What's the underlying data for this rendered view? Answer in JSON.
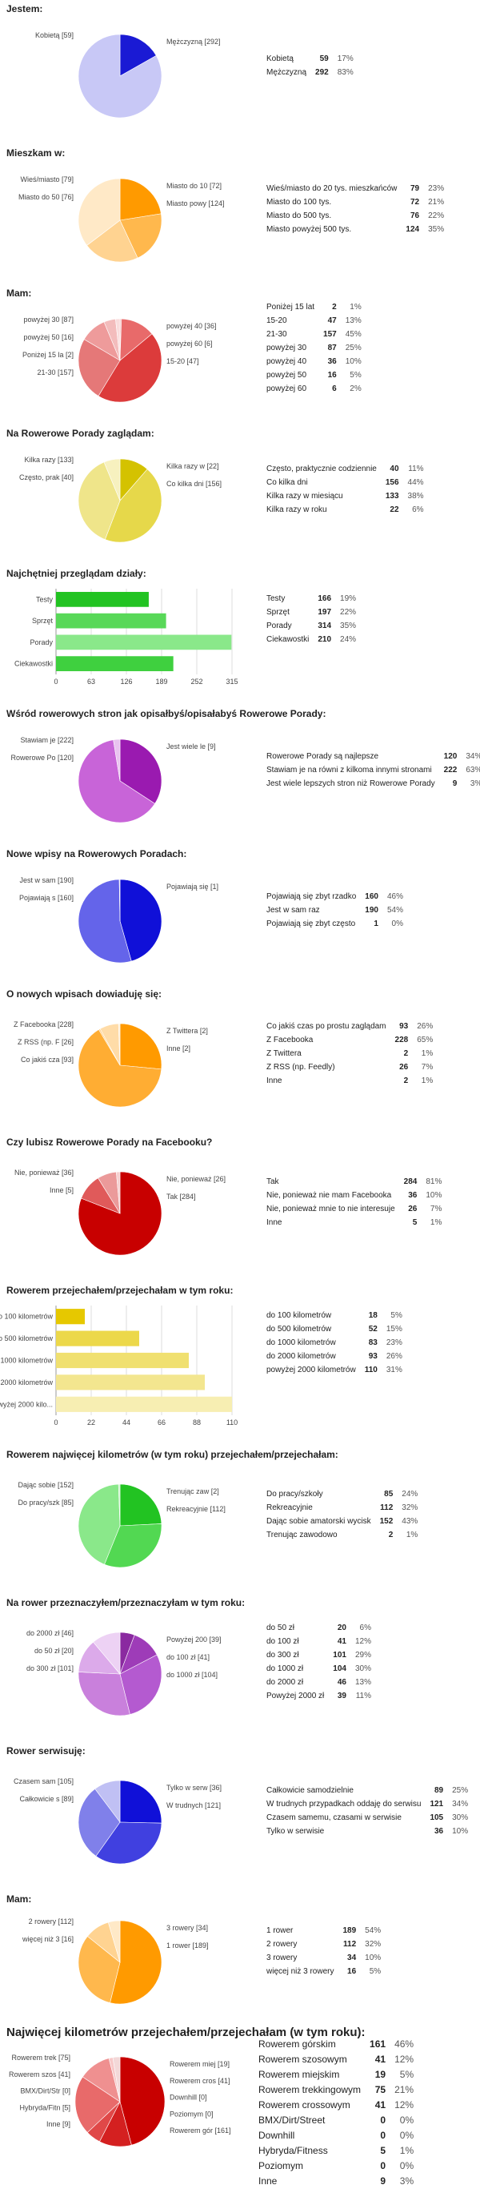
{
  "sections": [
    {
      "id": "jestem",
      "title": "Jestem:",
      "top": 0,
      "height": 165,
      "chart_data": {
        "type": "pie",
        "title": "Jestem:",
        "slices": [
          {
            "label": "Kobietą",
            "value": 59,
            "pct": "17%",
            "color": "#1a1ad4"
          },
          {
            "label": "Mężczyzną",
            "value": 292,
            "pct": "83%",
            "color": "#c8c8f6"
          }
        ],
        "pie_labels": [
          "Kobietą [59]",
          "Mężczyzną [292]"
        ]
      }
    },
    {
      "id": "mieszkam",
      "title": "Mieszkam w:",
      "top": 180,
      "height": 165,
      "chart_data": {
        "type": "pie",
        "title": "Mieszkam w:",
        "slices": [
          {
            "label": "Wieś/miasto do 20 tys. mieszkańców",
            "value": 79,
            "pct": "23%",
            "color": "#ff9a00"
          },
          {
            "label": "Miasto do 100 tys.",
            "value": 72,
            "pct": "21%",
            "color": "#ffb84d"
          },
          {
            "label": "Miasto do 500 tys.",
            "value": 76,
            "pct": "22%",
            "color": "#ffd391"
          },
          {
            "label": "Miasto powyżej 500 tys.",
            "value": 124,
            "pct": "35%",
            "color": "#ffe9c7"
          }
        ],
        "pie_labels": [
          "Wieś/miasto [79]",
          "Miasto do 10 [72]",
          "Miasto do 50 [76]",
          "Miasto powy [124]"
        ]
      }
    },
    {
      "id": "mam-wiek",
      "title": "Mam:",
      "top": 355,
      "height": 165,
      "chart_data": {
        "type": "pie",
        "title": "Mam:",
        "slices": [
          {
            "label": "Poniżej 15 lat",
            "value": 2,
            "pct": "1%",
            "color": "#f4b8b8"
          },
          {
            "label": "15-20",
            "value": 47,
            "pct": "13%",
            "color": "#e86a6a"
          },
          {
            "label": "21-30",
            "value": 157,
            "pct": "45%",
            "color": "#dc3b3b"
          },
          {
            "label": "powyżej 30",
            "value": 87,
            "pct": "25%",
            "color": "#e57878"
          },
          {
            "label": "powyżej 40",
            "value": 36,
            "pct": "10%",
            "color": "#ee9b9b"
          },
          {
            "label": "powyżej 50",
            "value": 16,
            "pct": "5%",
            "color": "#f3bcbc"
          },
          {
            "label": "powyżej 60",
            "value": 6,
            "pct": "2%",
            "color": "#f9dcdc"
          }
        ],
        "pie_labels": [
          "powyżej 30 [87]",
          "powyżej 40 [36]",
          "powyżej 50 [16]",
          "powyżej 60 [6]",
          "Poniżej 15 la [2]",
          "15-20 [47]",
          "21-30 [157]"
        ]
      }
    },
    {
      "id": "zagladam",
      "title": "Na Rowerowe Porady zaglądam:",
      "top": 530,
      "height": 165,
      "chart_data": {
        "type": "pie",
        "title": "Na Rowerowe Porady zaglądam:",
        "slices": [
          {
            "label": "Często, praktycznie codziennie",
            "value": 40,
            "pct": "11%",
            "color": "#d4c200"
          },
          {
            "label": "Co kilka dni",
            "value": 156,
            "pct": "44%",
            "color": "#e6d84a"
          },
          {
            "label": "Kilka razy w miesiącu",
            "value": 133,
            "pct": "38%",
            "color": "#efe58a"
          },
          {
            "label": "Kilka razy w roku",
            "value": 22,
            "pct": "6%",
            "color": "#f7f1bf"
          }
        ],
        "pie_labels": [
          "Kilka razy [133]",
          "Kilka razy w [22]",
          "Często, prak [40]",
          "Co kilka dni [156]"
        ]
      }
    },
    {
      "id": "dzialy",
      "title": "Najchętniej przeglądam działy:",
      "top": 705,
      "height": 165,
      "chart_data": {
        "type": "bar",
        "orientation": "horizontal",
        "title": "Najchętniej przeglądam działy:",
        "categories": [
          "Testy",
          "Sprzęt",
          "Porady",
          "Ciekawostki"
        ],
        "values": [
          166,
          197,
          314,
          210
        ],
        "pcts": [
          "19%",
          "22%",
          "35%",
          "24%"
        ],
        "colors": [
          "#22c322",
          "#58d858",
          "#8ae88a",
          "#3fd03f"
        ],
        "ticks": [
          "0",
          "63",
          "126",
          "189",
          "252",
          "315"
        ],
        "xlim": [
          0,
          315
        ]
      }
    },
    {
      "id": "wsrod",
      "title": "Wśród rowerowych stron jak opisałbyś/opisałabyś Rowerowe Porady:",
      "top": 880,
      "height": 165,
      "chart_data": {
        "type": "pie",
        "title": "Wśród rowerowych stron jak opisałbyś/opisałabyś Rowerowe Porady:",
        "slices": [
          {
            "label": "Rowerowe Porady są najlepsze",
            "value": 120,
            "pct": "34%",
            "color": "#9a1ab0"
          },
          {
            "label": "Stawiam je na równi z kilkoma innymi stronami",
            "value": 222,
            "pct": "63%",
            "color": "#c864d8"
          },
          {
            "label": "Jest wiele lepszych stron niż Rowerowe Porady",
            "value": 9,
            "pct": "3%",
            "color": "#e9c2f0"
          }
        ],
        "pie_labels": [
          "Stawiam je [222]",
          "Jest wiele le [9]",
          "Rowerowe Po [120]"
        ]
      }
    },
    {
      "id": "nowe-wpisy",
      "title": "Nowe wpisy na Rowerowych Poradach:",
      "top": 1055,
      "height": 165,
      "chart_data": {
        "type": "pie",
        "title": "Nowe wpisy na Rowerowych Poradach:",
        "slices": [
          {
            "label": "Pojawiają się zbyt rzadko",
            "value": 160,
            "pct": "46%",
            "color": "#1010d8"
          },
          {
            "label": "Jest w sam raz",
            "value": 190,
            "pct": "54%",
            "color": "#6464ea"
          },
          {
            "label": "Pojawiają się zbyt często",
            "value": 1,
            "pct": "0%",
            "color": "#c8c8f6"
          }
        ],
        "pie_labels": [
          "Jest w sam [190]",
          "Pojawiają się [1]",
          "Pojawiają s [160]"
        ]
      }
    },
    {
      "id": "dowiaduje",
      "title": "O nowych wpisach dowiaduję się:",
      "top": 1230,
      "height": 175,
      "chart_data": {
        "type": "pie",
        "title": "O nowych wpisach dowiaduję się:",
        "slices": [
          {
            "label": "Co jakiś czas po prostu zaglądam",
            "value": 93,
            "pct": "26%",
            "color": "#ff9a00"
          },
          {
            "label": "Z Facebooka",
            "value": 228,
            "pct": "65%",
            "color": "#ffad33"
          },
          {
            "label": "Z Twittera",
            "value": 2,
            "pct": "1%",
            "color": "#ffcc80"
          },
          {
            "label": "Z RSS (np. Feedly)",
            "value": 26,
            "pct": "7%",
            "color": "#ffdca8"
          },
          {
            "label": "Inne",
            "value": 2,
            "pct": "1%",
            "color": "#ffeed4"
          }
        ],
        "pie_labels": [
          "Z Facebooka [228]",
          "Z Twittera [2]",
          "Z RSS (np. F [26]",
          "Inne [2]",
          "Co jakiś cza [93]"
        ]
      }
    },
    {
      "id": "facebook",
      "title": "Czy lubisz Rowerowe Porady na Facebooku?",
      "top": 1415,
      "height": 175,
      "chart_data": {
        "type": "pie",
        "title": "Czy lubisz Rowerowe Porady na Facebooku?",
        "slices": [
          {
            "label": "Tak",
            "value": 284,
            "pct": "81%",
            "color": "#c80000"
          },
          {
            "label": "Nie, ponieważ nie mam Facebooka",
            "value": 36,
            "pct": "10%",
            "color": "#e05a5a"
          },
          {
            "label": "Nie, ponieważ mnie to nie interesuje",
            "value": 26,
            "pct": "7%",
            "color": "#eb9a9a"
          },
          {
            "label": "Inne",
            "value": 5,
            "pct": "1%",
            "color": "#f6d0d0"
          }
        ],
        "pie_labels": [
          "Nie, ponieważ [36]",
          "Nie, ponieważ [26]",
          "Inne [5]",
          "Tak [284]"
        ]
      }
    },
    {
      "id": "km-rok",
      "title": "Rowerem przejechałem/przejechałam w tym roku:",
      "top": 1600,
      "height": 195,
      "chart_data": {
        "type": "bar",
        "orientation": "horizontal",
        "title": "Rowerem przejechałem/przejechałam w tym roku:",
        "categories": [
          "do 100 kilometrów",
          "do 500 kilometrów",
          "do 1000 kilometrów",
          "do 2000 kilometrów",
          "powyżej 2000 kilometrów"
        ],
        "axis_labels": [
          "do 100 kilometrów",
          "do 500 kilometrów",
          "do 1000 kilometrów",
          "do 2000 kilometrów",
          "powyżej 2000 kilo..."
        ],
        "values": [
          18,
          52,
          83,
          93,
          110
        ],
        "pcts": [
          "5%",
          "15%",
          "23%",
          "26%",
          "31%"
        ],
        "colors": [
          "#e6c800",
          "#ecd84a",
          "#f0e070",
          "#f3e68f",
          "#f7eeb2"
        ],
        "ticks": [
          "0",
          "22",
          "44",
          "66",
          "88",
          "110"
        ],
        "xlim": [
          0,
          110
        ]
      }
    },
    {
      "id": "najwiecej",
      "title": "Rowerem najwięcej kilometrów (w tym roku) przejechałem/przejechałam:",
      "top": 1805,
      "height": 175,
      "chart_data": {
        "type": "pie",
        "title": "Rowerem najwięcej kilometrów (w tym roku) przejechałem/przejechałam:",
        "slices": [
          {
            "label": "Do pracy/szkoły",
            "value": 85,
            "pct": "24%",
            "color": "#22c322"
          },
          {
            "label": "Rekreacyjnie",
            "value": 112,
            "pct": "32%",
            "color": "#52d852"
          },
          {
            "label": "Dając sobie amatorski wycisk",
            "value": 152,
            "pct": "43%",
            "color": "#8ae88a"
          },
          {
            "label": "Trenując zawodowo",
            "value": 2,
            "pct": "1%",
            "color": "#c8f3c8"
          }
        ],
        "pie_labels": [
          "Dając sobie [152]",
          "Trenując zaw [2]",
          "Do pracy/szk [85]",
          "Rekreacyjnie [112]"
        ]
      }
    },
    {
      "id": "przeznaczam",
      "title": "Na rower przeznaczyłem/przeznaczyłam w tym roku:",
      "top": 1990,
      "height": 175,
      "chart_data": {
        "type": "pie",
        "title": "Na rower przeznaczyłem/przeznaczyłam w tym roku:",
        "slices": [
          {
            "label": "do 50 zł",
            "value": 20,
            "pct": "6%",
            "color": "#8a2aa0"
          },
          {
            "label": "do 100 zł",
            "value": 41,
            "pct": "12%",
            "color": "#9e3cb8"
          },
          {
            "label": "do 300 zł",
            "value": 101,
            "pct": "29%",
            "color": "#b45ad0"
          },
          {
            "label": "do 1000 zł",
            "value": 104,
            "pct": "30%",
            "color": "#c980dc"
          },
          {
            "label": "do 2000 zł",
            "value": 46,
            "pct": "13%",
            "color": "#dcaaea"
          },
          {
            "label": "Powyżej 2000 zł",
            "value": 39,
            "pct": "11%",
            "color": "#edd2f4"
          }
        ],
        "pie_labels": [
          "do 2000 zł [46]",
          "Powyżej 200 [39]",
          "do 50 zł [20]",
          "do 100 zł [41]",
          "do 300 zł [101]",
          "do 1000 zł [104]"
        ]
      }
    },
    {
      "id": "serwisuje",
      "title": "Rower serwisuję:",
      "top": 2175,
      "height": 175,
      "chart_data": {
        "type": "pie",
        "title": "Rower serwisuję:",
        "slices": [
          {
            "label": "Całkowicie samodzielnie",
            "value": 89,
            "pct": "25%",
            "color": "#1010d8"
          },
          {
            "label": "W trudnych przypadkach oddaję do serwisu",
            "value": 121,
            "pct": "34%",
            "color": "#4040e0"
          },
          {
            "label": "Czasem samemu, czasami w serwisie",
            "value": 105,
            "pct": "30%",
            "color": "#8080ea"
          },
          {
            "label": "Tylko w serwisie",
            "value": 36,
            "pct": "10%",
            "color": "#c0c0f4"
          }
        ],
        "pie_labels": [
          "Czasem sam [105]",
          "Tylko w serw [36]",
          "Całkowicie s [89]",
          "W trudnych [121]"
        ]
      }
    },
    {
      "id": "mam-rowery",
      "title": "Mam:",
      "top": 2360,
      "height": 155,
      "chart_data": {
        "type": "pie",
        "title": "Mam:",
        "slices": [
          {
            "label": "1 rower",
            "value": 189,
            "pct": "54%",
            "color": "#ff9a00"
          },
          {
            "label": "2 rowery",
            "value": 112,
            "pct": "32%",
            "color": "#ffb84d"
          },
          {
            "label": "3 rowery",
            "value": 34,
            "pct": "10%",
            "color": "#ffd391"
          },
          {
            "label": "więcej niż 3 rowery",
            "value": 16,
            "pct": "5%",
            "color": "#ffe9c7"
          }
        ],
        "pie_labels": [
          "2 rowery [112]",
          "3 rowery [34]",
          "więcej niż 3 [16]",
          "1 rower [189]"
        ]
      }
    },
    {
      "id": "najwiecej-km",
      "title": "Najwięcej kilometrów przejechałem/przejechałam (w tym roku):",
      "top": 2525,
      "height": 173,
      "big": true,
      "chart_data": {
        "type": "pie",
        "title": "Najwięcej kilometrów przejechałem/przejechałam (w tym roku):",
        "slices": [
          {
            "label": "Rowerem górskim",
            "value": 161,
            "pct": "46%",
            "color": "#c80000"
          },
          {
            "label": "Rowerem szosowym",
            "value": 41,
            "pct": "12%",
            "color": "#d42020"
          },
          {
            "label": "Rowerem miejskim",
            "value": 19,
            "pct": "5%",
            "color": "#e04848"
          },
          {
            "label": "Rowerem trekkingowym",
            "value": 75,
            "pct": "21%",
            "color": "#e86a6a"
          },
          {
            "label": "Rowerem crossowym",
            "value": 41,
            "pct": "12%",
            "color": "#ef9090"
          },
          {
            "label": "BMX/Dirt/Street",
            "value": 0,
            "pct": "0%",
            "color": "#f4b4b4"
          },
          {
            "label": "Downhill",
            "value": 0,
            "pct": "0%",
            "color": "#f8cccc"
          },
          {
            "label": "Hybryda/Fitness",
            "value": 5,
            "pct": "1%",
            "color": "#f7c8c8"
          },
          {
            "label": "Poziomym",
            "value": 0,
            "pct": "0%",
            "color": "#fbe0e0"
          },
          {
            "label": "Inne",
            "value": 9,
            "pct": "3%",
            "color": "#f3d8d8"
          }
        ],
        "pie_labels": [
          "Rowerem trek [75]",
          "Rowerem miej [19]",
          "Rowerem szos [41]",
          "Rowerem cros [41]",
          "BMX/Dirt/Str [0]",
          "Downhill [0]",
          "Hybryda/Fitn [5]",
          "Poziomym [0]",
          "Inne [9]",
          "Rowerem gór [161]"
        ]
      }
    }
  ]
}
